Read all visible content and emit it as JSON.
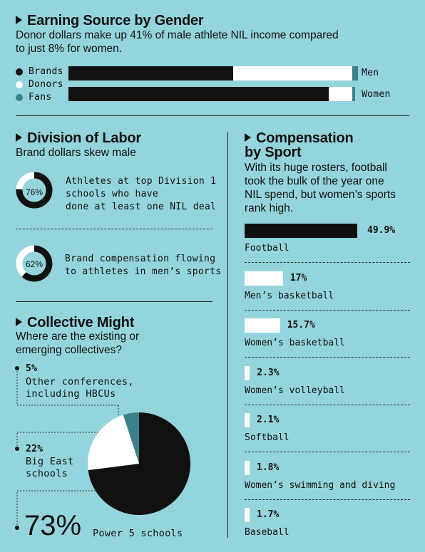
{
  "colors": {
    "background": "#94d4dc",
    "brands": "#111111",
    "donors": "#ffffff",
    "fans": "#3e8088"
  },
  "earning": {
    "title": "Earning Source by Gender",
    "subtitle_line1": "Donor dollars make up 41% of male athlete NIL income compared",
    "subtitle_line2": "to just 8% for women.",
    "legend": [
      "Brands",
      "Donors",
      "Fans"
    ]
  },
  "division": {
    "title": "Division of Labor",
    "subtitle": "Brand dollars skew male",
    "stat1": {
      "value": "76%",
      "text_line1": "Athletes at top Division 1",
      "text_line2": "schools who have",
      "text_line3": "done at least one NIL deal"
    },
    "stat2": {
      "value": "62%",
      "text_line1": "Brand compensation flowing",
      "text_line2": "to athletes in men’s sports"
    }
  },
  "collective": {
    "title": "Collective Might",
    "subtitle_line1": "Where are the existing or",
    "subtitle_line2": "emerging collectives?",
    "a": {
      "value": "5%",
      "label_line1": "Other conferences,",
      "label_line2": "including HBCUs"
    },
    "b": {
      "value": "22%",
      "label_line1": "Big East",
      "label_line2": "schools"
    },
    "c": {
      "value": "73%",
      "label": "Power 5 schools"
    }
  },
  "compensation": {
    "title_line1": "Compensation",
    "title_line2": "by Sport",
    "subtitle_line1": "With its huge rosters, football",
    "subtitle_line2": "took the bulk of the year one",
    "subtitle_line3": "NIL spend, but women’s sports",
    "subtitle_line4": "rank high."
  },
  "chart_data": [
    {
      "type": "bar",
      "title": "Earning Source by Gender",
      "categories": [
        "Men",
        "Women"
      ],
      "series": [
        {
          "name": "Brands",
          "values": [
            57,
            90
          ]
        },
        {
          "name": "Donors",
          "values": [
            41,
            8
          ]
        },
        {
          "name": "Fans",
          "values": [
            2,
            1
          ]
        }
      ],
      "stacked": true,
      "ylim": [
        0,
        100
      ]
    },
    {
      "type": "pie",
      "title": "Division of Labor",
      "categories": [
        "Athletes at top Division 1 schools who have done at least one NIL deal",
        "Brand compensation flowing to athletes in men’s sports"
      ],
      "values": [
        76,
        62
      ]
    },
    {
      "type": "pie",
      "title": "Collective Might",
      "categories": [
        "Power 5 schools",
        "Big East schools",
        "Other conferences, including HBCUs"
      ],
      "values": [
        73,
        22,
        5
      ]
    },
    {
      "type": "bar",
      "title": "Compensation by Sport",
      "categories": [
        "Football",
        "Men’s basketball",
        "Women’s basketball",
        "Women’s volleyball",
        "Softball",
        "Women’s swimming and diving",
        "Baseball"
      ],
      "values": [
        49.9,
        17,
        15.7,
        2.3,
        2.1,
        1.8,
        1.7
      ],
      "value_labels": [
        "49.9%",
        "17%",
        "15.7%",
        "2.3%",
        "2.1%",
        "1.8%",
        "1.7%"
      ]
    }
  ]
}
